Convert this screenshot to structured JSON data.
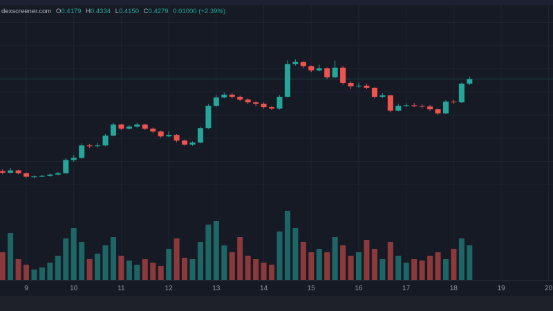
{
  "legend": {
    "source": "dexscreener.com",
    "o_label": "O",
    "o": "0.4179",
    "h_label": "H",
    "h": "0.4334",
    "l_label": "L",
    "l": "0.4150",
    "c_label": "C",
    "c": "0.4279",
    "change": "0.01000 (+2.39%)"
  },
  "colors": {
    "up": "#26a69a",
    "down": "#ef5350",
    "background": "#161a25",
    "grid": "#1e2431"
  },
  "chart_data": {
    "type": "candlestick",
    "title": "",
    "xlabel": "",
    "ylabel": "",
    "x_ticks": [
      "9",
      "10",
      "11",
      "12",
      "13",
      "14",
      "15",
      "16",
      "17",
      "18",
      "19",
      "20"
    ],
    "xlim": [
      8.45,
      20.1
    ],
    "ylim": [
      0.19,
      0.55
    ],
    "grid": true,
    "price_gridlines": [
      0.2,
      0.25,
      0.3,
      0.35,
      0.4,
      0.45,
      0.5,
      0.55
    ],
    "last_price": 0.4279,
    "candle_step_days": 0.1667,
    "start_day": 8.5,
    "candles_ohlc": [
      [
        0.229,
        0.233,
        0.222,
        0.2255
      ],
      [
        0.2255,
        0.236,
        0.224,
        0.2305
      ],
      [
        0.2305,
        0.232,
        0.222,
        0.2245
      ],
      [
        0.2245,
        0.226,
        0.215,
        0.217
      ],
      [
        0.217,
        0.22,
        0.214,
        0.2175
      ],
      [
        0.2175,
        0.221,
        0.216,
        0.2185
      ],
      [
        0.2185,
        0.224,
        0.217,
        0.2215
      ],
      [
        0.2215,
        0.227,
        0.22,
        0.2245
      ],
      [
        0.2245,
        0.257,
        0.223,
        0.253
      ],
      [
        0.253,
        0.264,
        0.249,
        0.2575
      ],
      [
        0.2575,
        0.289,
        0.256,
        0.2845
      ],
      [
        0.2845,
        0.288,
        0.279,
        0.283
      ],
      [
        0.283,
        0.29,
        0.28,
        0.2845
      ],
      [
        0.2845,
        0.309,
        0.283,
        0.3055
      ],
      [
        0.3055,
        0.333,
        0.304,
        0.3295
      ],
      [
        0.3295,
        0.331,
        0.318,
        0.3205
      ],
      [
        0.3205,
        0.328,
        0.319,
        0.325
      ],
      [
        0.325,
        0.333,
        0.323,
        0.3295
      ],
      [
        0.3295,
        0.331,
        0.318,
        0.3205
      ],
      [
        0.3205,
        0.323,
        0.311,
        0.3145
      ],
      [
        0.3145,
        0.316,
        0.301,
        0.304
      ],
      [
        0.304,
        0.315,
        0.302,
        0.307
      ],
      [
        0.307,
        0.309,
        0.291,
        0.295
      ],
      [
        0.295,
        0.297,
        0.284,
        0.286
      ],
      [
        0.286,
        0.293,
        0.284,
        0.2905
      ],
      [
        0.2905,
        0.325,
        0.289,
        0.322
      ],
      [
        0.322,
        0.374,
        0.32,
        0.37
      ],
      [
        0.37,
        0.393,
        0.368,
        0.388
      ],
      [
        0.388,
        0.399,
        0.386,
        0.394
      ],
      [
        0.394,
        0.397,
        0.386,
        0.3895
      ],
      [
        0.3895,
        0.392,
        0.38,
        0.3835
      ],
      [
        0.3835,
        0.386,
        0.374,
        0.3775
      ],
      [
        0.3775,
        0.38,
        0.369,
        0.3745
      ],
      [
        0.3745,
        0.377,
        0.364,
        0.367
      ],
      [
        0.367,
        0.37,
        0.361,
        0.364
      ],
      [
        0.364,
        0.393,
        0.362,
        0.3895
      ],
      [
        0.3895,
        0.468,
        0.388,
        0.46
      ],
      [
        0.46,
        0.47,
        0.457,
        0.4645
      ],
      [
        0.4645,
        0.466,
        0.452,
        0.4555
      ],
      [
        0.4555,
        0.457,
        0.443,
        0.4465
      ],
      [
        0.4465,
        0.459,
        0.444,
        0.451
      ],
      [
        0.451,
        0.453,
        0.428,
        0.4315
      ],
      [
        0.4315,
        0.468,
        0.43,
        0.4525
      ],
      [
        0.4525,
        0.456,
        0.416,
        0.4195
      ],
      [
        0.4195,
        0.423,
        0.406,
        0.412
      ],
      [
        0.412,
        0.42,
        0.409,
        0.4135
      ],
      [
        0.4135,
        0.418,
        0.406,
        0.409
      ],
      [
        0.409,
        0.41,
        0.386,
        0.3895
      ],
      [
        0.3895,
        0.397,
        0.387,
        0.3925
      ],
      [
        0.3925,
        0.394,
        0.356,
        0.3595
      ],
      [
        0.3595,
        0.374,
        0.358,
        0.37
      ],
      [
        0.37,
        0.375,
        0.367,
        0.371
      ],
      [
        0.371,
        0.376,
        0.367,
        0.37
      ],
      [
        0.37,
        0.373,
        0.365,
        0.3685
      ],
      [
        0.3685,
        0.372,
        0.359,
        0.3625
      ],
      [
        0.3625,
        0.364,
        0.35,
        0.3535
      ],
      [
        0.3535,
        0.382,
        0.352,
        0.379
      ],
      [
        0.379,
        0.383,
        0.374,
        0.3775
      ],
      [
        0.3775,
        0.42,
        0.376,
        0.4179
      ],
      [
        0.4179,
        0.4334,
        0.415,
        0.4279
      ]
    ],
    "volume_relative": [
      40,
      68,
      30,
      22,
      15,
      18,
      25,
      35,
      60,
      75,
      55,
      30,
      38,
      50,
      62,
      35,
      28,
      22,
      30,
      25,
      20,
      45,
      60,
      32,
      30,
      55,
      80,
      85,
      50,
      40,
      62,
      35,
      30,
      25,
      22,
      70,
      100,
      75,
      55,
      40,
      45,
      40,
      62,
      50,
      35,
      40,
      58,
      45,
      30,
      55,
      35,
      25,
      30,
      28,
      35,
      40,
      30,
      45,
      60,
      50
    ]
  }
}
